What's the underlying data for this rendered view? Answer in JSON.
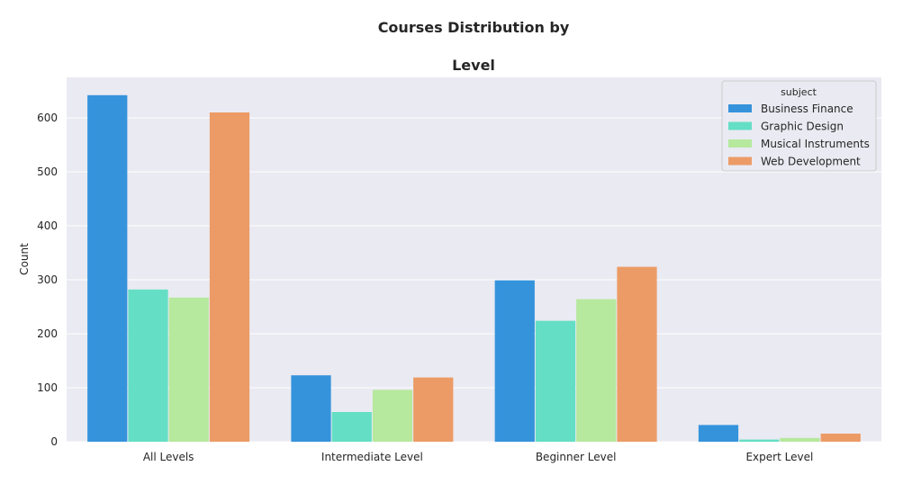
{
  "chart_data": {
    "type": "bar",
    "title_lines": [
      "Courses Distribution by",
      "Level"
    ],
    "xlabel": "",
    "ylabel": "Count",
    "categories": [
      "All Levels",
      "Intermediate Level",
      "Beginner Level",
      "Expert Level"
    ],
    "yticks": [
      0,
      100,
      200,
      300,
      400,
      500,
      600
    ],
    "ylim": [
      0,
      675
    ],
    "grid": true,
    "legend": {
      "title": "subject",
      "placement": "top-right"
    },
    "series": [
      {
        "name": "Business Finance",
        "color": "#3593dc",
        "values": [
          642,
          123,
          299,
          31
        ]
      },
      {
        "name": "Graphic Design",
        "color": "#64dec4",
        "values": [
          282,
          55,
          224,
          4
        ]
      },
      {
        "name": "Musical Instruments",
        "color": "#b6e89d",
        "values": [
          267,
          96,
          264,
          7
        ]
      },
      {
        "name": "Web Development",
        "color": "#ec9b66",
        "values": [
          610,
          119,
          324,
          15
        ]
      }
    ],
    "colors": {
      "plot_background": "#eaeaf2",
      "grid": "#ffffff"
    }
  }
}
